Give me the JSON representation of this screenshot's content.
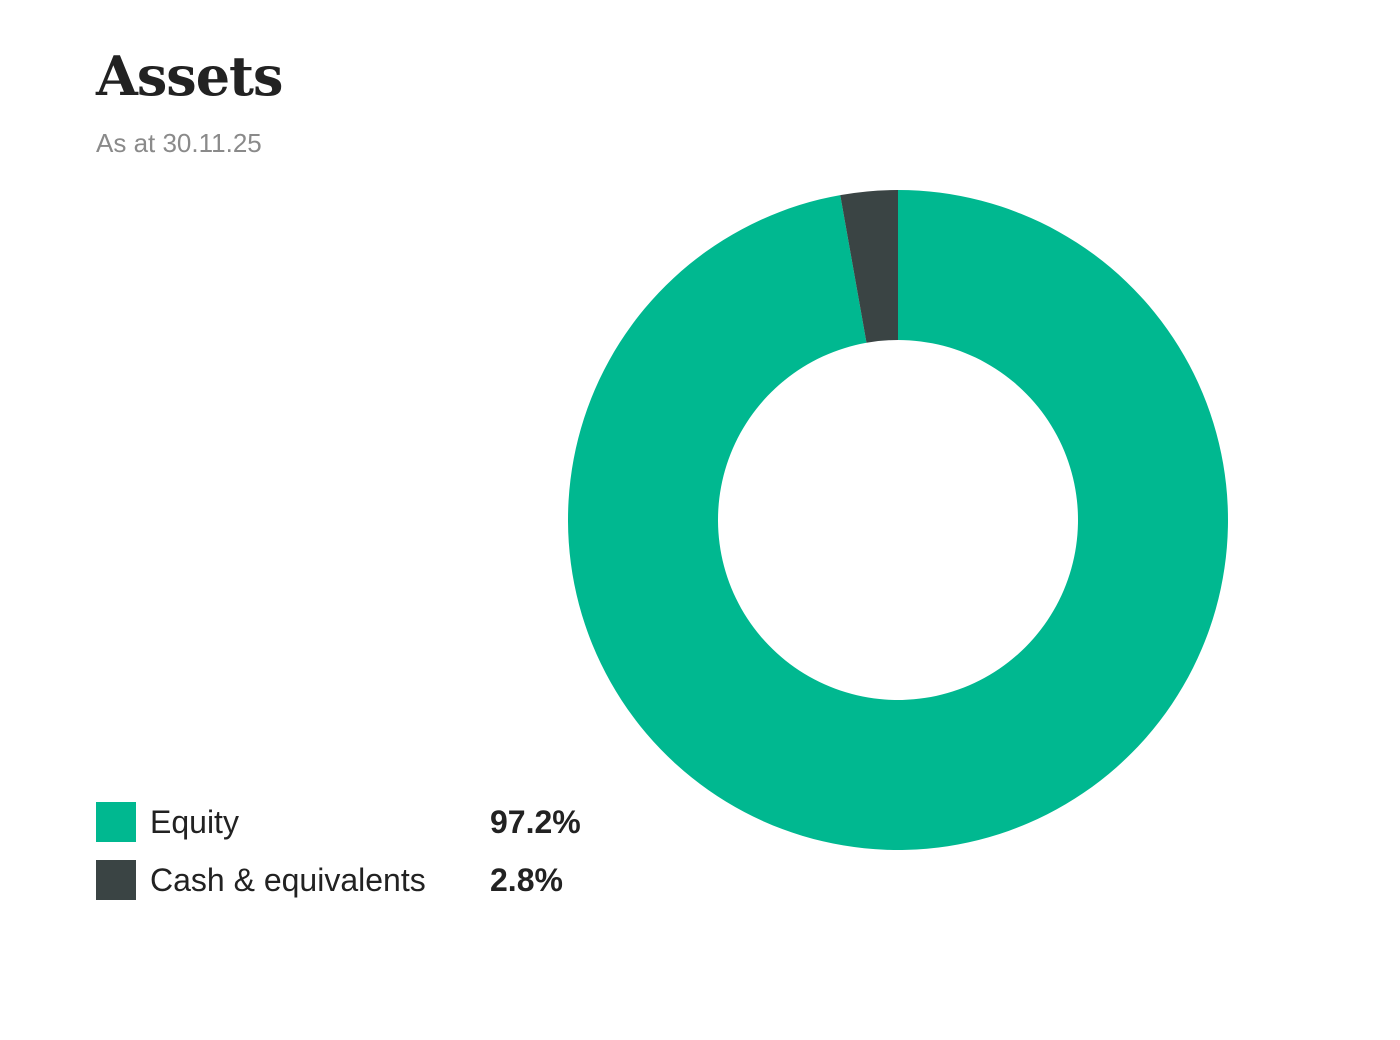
{
  "header": {
    "title": "Assets",
    "subtitle": "As at 30.11.25"
  },
  "legend": [
    {
      "label": "Equity",
      "value": "97.2%",
      "color": "#00b890"
    },
    {
      "label": "Cash & equivalents",
      "value": "2.8%",
      "color": "#3a4444"
    }
  ],
  "chart_data": {
    "type": "pie",
    "subtype": "donut",
    "title": "Assets",
    "subtitle": "As at 30.11.25",
    "categories": [
      "Equity",
      "Cash & equivalents"
    ],
    "values": [
      97.2,
      2.8
    ],
    "unit": "%",
    "colors": [
      "#00b890",
      "#3a4444"
    ],
    "legend_position": "bottom-left"
  }
}
